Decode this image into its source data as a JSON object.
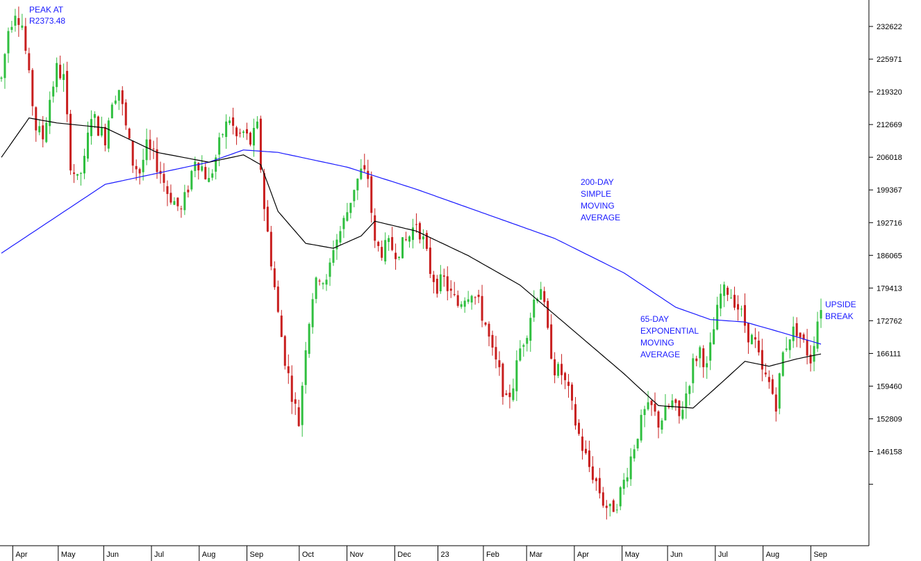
{
  "chart_data": {
    "type": "candlestick",
    "title": "",
    "xlabel": "",
    "ylabel": "",
    "colors": {
      "up": "#2fbf3f",
      "down": "#c81e1e",
      "sma200": "#1a1aff",
      "ema65": "#000000",
      "annotation": "#1a1aff",
      "axis": "#000000"
    },
    "ylim": [
      127000,
      238000
    ],
    "y_ticks": [
      "232622",
      "225971",
      "219320",
      "212669",
      "206018",
      "199367",
      "192716",
      "186065",
      "179413",
      "172762",
      "166111",
      "159460",
      "152809",
      "146158"
    ],
    "y_tick_values": [
      232622,
      225971,
      219320,
      212669,
      206018,
      199367,
      192716,
      186065,
      179413,
      172762,
      166111,
      159460,
      152809,
      146158
    ],
    "x_ticks": [
      "Apr",
      "May",
      "Jun",
      "Jul",
      "Aug",
      "Sep",
      "Oct",
      "Nov",
      "Dec",
      "23",
      "Feb",
      "Mar",
      "Apr",
      "May",
      "Jun",
      "Jul",
      "Aug",
      "Sep"
    ],
    "price_anchors": [
      [
        0,
        222000
      ],
      [
        2,
        232000
      ],
      [
        4,
        236000
      ],
      [
        6,
        233000
      ],
      [
        8,
        222000
      ],
      [
        10,
        212000
      ],
      [
        12,
        210000
      ],
      [
        14,
        218000
      ],
      [
        16,
        224000
      ],
      [
        18,
        222000
      ],
      [
        20,
        205000
      ],
      [
        22,
        201000
      ],
      [
        24,
        205000
      ],
      [
        26,
        215000
      ],
      [
        28,
        212000
      ],
      [
        30,
        210000
      ],
      [
        32,
        218000
      ],
      [
        34,
        220000
      ],
      [
        36,
        212000
      ],
      [
        38,
        205000
      ],
      [
        40,
        203000
      ],
      [
        42,
        208000
      ],
      [
        44,
        206000
      ],
      [
        46,
        203000
      ],
      [
        48,
        199000
      ],
      [
        50,
        197000
      ],
      [
        52,
        195000
      ],
      [
        54,
        200000
      ],
      [
        56,
        206000
      ],
      [
        58,
        204000
      ],
      [
        60,
        201000
      ],
      [
        62,
        206000
      ],
      [
        64,
        211000
      ],
      [
        66,
        214000
      ],
      [
        68,
        210000
      ],
      [
        70,
        211000
      ],
      [
        72,
        209000
      ],
      [
        74,
        212000
      ],
      [
        76,
        196000
      ],
      [
        78,
        185000
      ],
      [
        80,
        174000
      ],
      [
        82,
        165000
      ],
      [
        84,
        158000
      ],
      [
        86,
        152000
      ],
      [
        88,
        168000
      ],
      [
        90,
        178000
      ],
      [
        92,
        182000
      ],
      [
        94,
        180000
      ],
      [
        96,
        188000
      ],
      [
        98,
        191000
      ],
      [
        100,
        195000
      ],
      [
        102,
        200000
      ],
      [
        104,
        203000
      ],
      [
        106,
        202000
      ],
      [
        108,
        188000
      ],
      [
        110,
        187000
      ],
      [
        112,
        188000
      ],
      [
        114,
        187000
      ],
      [
        116,
        188000
      ],
      [
        118,
        190000
      ],
      [
        120,
        193000
      ],
      [
        122,
        189000
      ],
      [
        124,
        183000
      ],
      [
        126,
        180000
      ],
      [
        128,
        181000
      ],
      [
        130,
        178000
      ],
      [
        132,
        176000
      ],
      [
        134,
        178000
      ],
      [
        136,
        179000
      ],
      [
        138,
        176000
      ],
      [
        140,
        172000
      ],
      [
        142,
        166000
      ],
      [
        144,
        162000
      ],
      [
        146,
        156000
      ],
      [
        148,
        160000
      ],
      [
        150,
        167000
      ],
      [
        152,
        171000
      ],
      [
        154,
        177000
      ],
      [
        156,
        180000
      ],
      [
        158,
        170000
      ],
      [
        160,
        163000
      ],
      [
        162,
        162000
      ],
      [
        164,
        158000
      ],
      [
        166,
        152000
      ],
      [
        168,
        147000
      ],
      [
        170,
        143000
      ],
      [
        172,
        140000
      ],
      [
        174,
        136000
      ],
      [
        176,
        134000
      ],
      [
        178,
        136000
      ],
      [
        180,
        140000
      ],
      [
        182,
        145000
      ],
      [
        184,
        150000
      ],
      [
        186,
        154000
      ],
      [
        188,
        155000
      ],
      [
        190,
        152000
      ],
      [
        192,
        154000
      ],
      [
        194,
        156000
      ],
      [
        196,
        153000
      ],
      [
        198,
        158000
      ],
      [
        200,
        164000
      ],
      [
        202,
        167000
      ],
      [
        204,
        163000
      ],
      [
        206,
        171000
      ],
      [
        208,
        178000
      ],
      [
        210,
        179000
      ],
      [
        212,
        177000
      ],
      [
        214,
        174000
      ],
      [
        216,
        170000
      ],
      [
        218,
        168000
      ],
      [
        220,
        162000
      ],
      [
        222,
        160000
      ],
      [
        224,
        156000
      ],
      [
        226,
        166000
      ],
      [
        228,
        170000
      ],
      [
        230,
        171000
      ],
      [
        232,
        168000
      ],
      [
        234,
        165000
      ],
      [
        236,
        173000
      ],
      [
        237,
        176000
      ]
    ],
    "sma200_points": [
      [
        0,
        186500
      ],
      [
        30,
        200500
      ],
      [
        60,
        205000
      ],
      [
        70,
        207500
      ],
      [
        80,
        207000
      ],
      [
        100,
        204000
      ],
      [
        120,
        199500
      ],
      [
        140,
        194500
      ],
      [
        160,
        189500
      ],
      [
        180,
        182500
      ],
      [
        195,
        175500
      ],
      [
        205,
        173000
      ],
      [
        215,
        172500
      ],
      [
        225,
        170500
      ],
      [
        237,
        168000
      ]
    ],
    "ema65_points": [
      [
        0,
        206000
      ],
      [
        8,
        214000
      ],
      [
        16,
        213000
      ],
      [
        30,
        212000
      ],
      [
        45,
        207000
      ],
      [
        60,
        205000
      ],
      [
        70,
        206500
      ],
      [
        75,
        204500
      ],
      [
        80,
        195000
      ],
      [
        88,
        188500
      ],
      [
        96,
        187500
      ],
      [
        104,
        190000
      ],
      [
        108,
        193000
      ],
      [
        120,
        191000
      ],
      [
        135,
        186000
      ],
      [
        150,
        180000
      ],
      [
        165,
        171000
      ],
      [
        180,
        162000
      ],
      [
        190,
        155500
      ],
      [
        200,
        155000
      ],
      [
        208,
        160000
      ],
      [
        215,
        164500
      ],
      [
        222,
        163500
      ],
      [
        230,
        165000
      ],
      [
        237,
        166000
      ]
    ],
    "annotations": {
      "peak": "PEAK AT R2373.48",
      "sma200": "200-DAY SIMPLE MOVING AVERAGE",
      "ema65": "65-DAY EXPONENTIAL MOVING AVERAGE",
      "breakout": "UPSIDE BREAK"
    }
  }
}
